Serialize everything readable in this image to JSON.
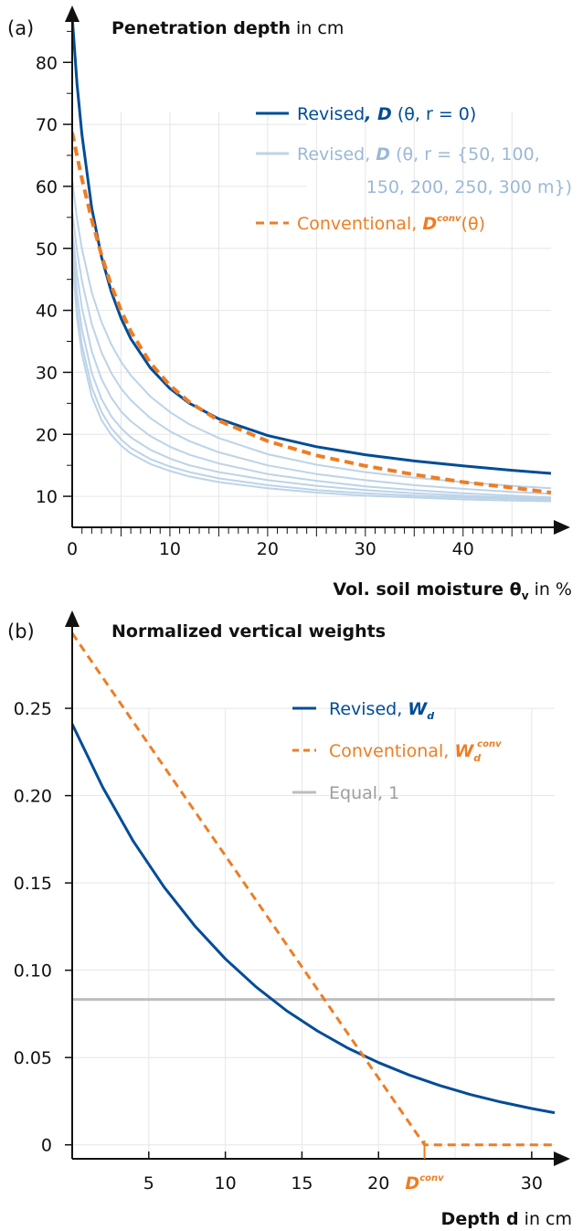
{
  "chart_data": [
    {
      "panel_label": "(a)",
      "type": "line",
      "title_bold": "Penetration depth",
      "title_rest": " in cm",
      "xlabel_bold": "Vol. soil moisture θ",
      "xlabel_sub": "v",
      "xlabel_rest": " in %",
      "ylabel": "",
      "xlim": [
        0,
        49
      ],
      "ylim": [
        5,
        88
      ],
      "xticks": [
        "0",
        "10",
        "20",
        "30",
        "40"
      ],
      "yticks": [
        "10",
        "20",
        "30",
        "40",
        "50",
        "60",
        "70",
        "80"
      ],
      "grid": true,
      "legend_position": "top-right",
      "legend": [
        {
          "pre": "Revised",
          "sym": ", D",
          "rest": " (θ, r = 0)"
        },
        {
          "pre": "Revised, ",
          "sym": "D",
          "rest": " (θ, r = {50, 100,",
          "rest2": "150, 200, 250, 300 m})"
        },
        {
          "pre": "Conventional, ",
          "sym": "D",
          "sup": "conv",
          "rest": "(θ)"
        }
      ],
      "colors": {
        "revised": "#004c97",
        "revised_r": "#bcd3e8",
        "conventional": "#ee7d23"
      },
      "series": [
        {
          "name": "Revised, D (θ, r = 0)",
          "x": [
            0,
            0.5,
            1,
            2,
            3,
            4,
            5,
            6,
            8,
            10,
            12,
            15,
            20,
            25,
            30,
            35,
            40,
            45,
            49
          ],
          "y": [
            87.4,
            76.5,
            68.3,
            56.5,
            48.6,
            43.0,
            38.7,
            35.4,
            30.7,
            27.4,
            25.0,
            22.5,
            19.8,
            18.0,
            16.7,
            15.7,
            14.9,
            14.2,
            13.7
          ]
        },
        {
          "name": "Revised, D (θ, r = {50, 100, 150, 200, 250, 300 m})",
          "x": [
            0,
            0.5,
            1,
            2,
            3,
            4,
            5,
            6,
            8,
            10,
            12,
            15,
            20,
            25,
            30,
            35,
            40,
            45,
            49
          ],
          "y": [
            61.0,
            54.7,
            49.9,
            42.9,
            38.1,
            34.5,
            31.7,
            29.5,
            26.1,
            23.6,
            21.6,
            19.4,
            16.8,
            15.1,
            13.9,
            13.0,
            12.3,
            11.7,
            11.3
          ]
        },
        {
          "name": "",
          "x": [
            0,
            0.5,
            1,
            2,
            3,
            4,
            5,
            6,
            8,
            10,
            12,
            15,
            20,
            25,
            30,
            35,
            40,
            45,
            49
          ],
          "y": [
            56.0,
            49.6,
            44.7,
            37.8,
            33.2,
            29.9,
            27.4,
            25.5,
            22.6,
            20.5,
            18.9,
            17.1,
            15.0,
            13.6,
            12.6,
            11.8,
            11.2,
            10.7,
            10.4
          ]
        },
        {
          "name": "",
          "x": [
            0,
            0.5,
            1,
            2,
            3,
            4,
            5,
            6,
            8,
            10,
            12,
            15,
            20,
            25,
            30,
            35,
            40,
            45,
            49
          ],
          "y": [
            53.0,
            45.7,
            40.4,
            33.4,
            28.9,
            25.9,
            23.7,
            22.1,
            19.7,
            18.0,
            16.7,
            15.3,
            13.6,
            12.5,
            11.6,
            11.0,
            10.5,
            10.1,
            9.8
          ]
        },
        {
          "name": "",
          "x": [
            0,
            0.5,
            1,
            2,
            3,
            4,
            5,
            6,
            8,
            10,
            12,
            15,
            20,
            25,
            30,
            35,
            40,
            45,
            49
          ],
          "y": [
            51.0,
            42.6,
            36.9,
            29.9,
            25.7,
            22.9,
            21.0,
            19.5,
            17.5,
            16.1,
            15.0,
            13.9,
            12.6,
            11.7,
            11.0,
            10.5,
            10.1,
            9.8,
            9.6
          ]
        },
        {
          "name": "",
          "x": [
            0,
            0.5,
            1,
            2,
            3,
            4,
            5,
            6,
            8,
            10,
            12,
            15,
            20,
            25,
            30,
            35,
            40,
            45,
            49
          ],
          "y": [
            49.5,
            40.2,
            34.4,
            27.6,
            23.6,
            21.0,
            19.2,
            17.8,
            16.0,
            14.8,
            13.9,
            12.9,
            11.8,
            11.0,
            10.5,
            10.1,
            9.8,
            9.6,
            9.4
          ]
        },
        {
          "name": "",
          "x": [
            0,
            0.5,
            1,
            2,
            3,
            4,
            5,
            6,
            8,
            10,
            12,
            15,
            20,
            25,
            30,
            35,
            40,
            45,
            49
          ],
          "y": [
            48.5,
            38.8,
            32.9,
            26.1,
            22.3,
            19.9,
            18.2,
            16.9,
            15.2,
            14.1,
            13.2,
            12.3,
            11.3,
            10.6,
            10.1,
            9.8,
            9.5,
            9.3,
            9.2
          ]
        },
        {
          "name": "Conventional, D^conv(θ)",
          "x": [
            0,
            0.5,
            1,
            2,
            3,
            4,
            5,
            6,
            8,
            10,
            12,
            15,
            20,
            25,
            30,
            35,
            40,
            45,
            49
          ],
          "y": [
            68.7,
            64.9,
            61.2,
            54.6,
            48.9,
            44.0,
            40.0,
            36.6,
            31.5,
            27.9,
            25.2,
            22.2,
            18.9,
            16.6,
            14.9,
            13.5,
            12.3,
            11.4,
            10.6
          ]
        }
      ]
    },
    {
      "panel_label": "(b)",
      "type": "line",
      "title_bold": "Normalized vertical weights",
      "xlabel_bold": "Depth d",
      "xlabel_rest": " in cm",
      "ylabel": "",
      "xlim": [
        0,
        31.5
      ],
      "ylim": [
        -0.008,
        0.305
      ],
      "xticks": [
        "5",
        "10",
        "15",
        "20",
        "30"
      ],
      "yticks": [
        "0",
        "0.05",
        "0.10",
        "0.15",
        "0.20",
        "0.25"
      ],
      "dconv_tick": {
        "label": "D",
        "sup": "conv",
        "x": 23
      },
      "grid": true,
      "legend_position": "top-right",
      "legend": [
        {
          "pre": "Revised, ",
          "sym": "W",
          "sub": "d"
        },
        {
          "pre": "Conventional, ",
          "sym": "W",
          "sub": "d",
          "sup": "conv"
        },
        {
          "pre": "Equal, 1"
        }
      ],
      "colors": {
        "revised": "#004c97",
        "conventional": "#ee7d23",
        "equal": "#bdbdbd"
      },
      "series": [
        {
          "name": "Revised, W_d",
          "x": [
            0,
            2,
            4,
            6,
            8,
            10,
            12,
            14,
            16,
            18,
            20,
            22,
            24,
            26,
            28,
            30,
            31.5
          ],
          "y": [
            0.241,
            0.2047,
            0.1738,
            0.1476,
            0.1254,
            0.1065,
            0.0905,
            0.0768,
            0.0653,
            0.0554,
            0.0471,
            0.04,
            0.034,
            0.0288,
            0.0245,
            0.0208,
            0.0184
          ]
        },
        {
          "name": "Conventional, W_d^conv",
          "x": [
            0,
            23,
            31.5
          ],
          "y": [
            0.293,
            0.0,
            0.0
          ]
        },
        {
          "name": "Equal, 1",
          "x": [
            0,
            31.5
          ],
          "y": [
            0.0833,
            0.0833
          ]
        }
      ]
    }
  ]
}
